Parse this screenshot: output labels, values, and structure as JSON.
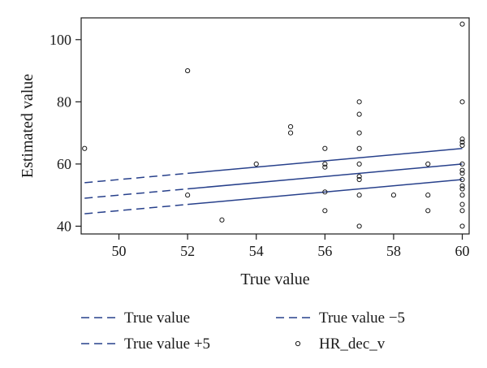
{
  "chart_data": {
    "type": "scatter",
    "title": "",
    "xlabel": "True value",
    "ylabel": "Estimated value",
    "xlim": [
      48.9,
      60.2
    ],
    "ylim": [
      37.5,
      107
    ],
    "x_ticks": [
      50,
      52,
      54,
      56,
      58,
      60
    ],
    "y_ticks": [
      40,
      60,
      80,
      100
    ],
    "grid": false,
    "legend_position": "bottom",
    "colors": {
      "lines": "#27408b",
      "points": "#1a1a1a",
      "axes": "#1a1a1a"
    },
    "lines": [
      {
        "name": "True value",
        "intercept": 0,
        "slope": 1,
        "x_range": [
          49,
          60
        ],
        "solid_from": 52
      },
      {
        "name": "True value +5",
        "intercept": 5,
        "slope": 1,
        "x_range": [
          49,
          60
        ],
        "solid_from": 52
      },
      {
        "name": "True value −5",
        "intercept": -5,
        "slope": 1,
        "x_range": [
          49,
          60
        ],
        "solid_from": 52
      }
    ],
    "series": [
      {
        "name": "HR_dec_v",
        "marker": "circle",
        "points": [
          [
            49,
            65
          ],
          [
            52,
            90
          ],
          [
            52,
            50
          ],
          [
            53,
            42
          ],
          [
            54,
            60
          ],
          [
            55,
            72
          ],
          [
            55,
            70
          ],
          [
            56,
            65
          ],
          [
            56,
            60
          ],
          [
            56,
            59
          ],
          [
            56,
            51
          ],
          [
            56,
            45
          ],
          [
            57,
            80
          ],
          [
            57,
            76
          ],
          [
            57,
            70
          ],
          [
            57,
            65
          ],
          [
            57,
            60
          ],
          [
            57,
            56
          ],
          [
            57,
            55
          ],
          [
            57,
            50
          ],
          [
            57,
            40
          ],
          [
            58,
            50
          ],
          [
            59,
            60
          ],
          [
            59,
            50
          ],
          [
            59,
            45
          ],
          [
            60,
            105
          ],
          [
            60,
            80
          ],
          [
            60,
            68
          ],
          [
            60,
            67
          ],
          [
            60,
            66
          ],
          [
            60,
            60
          ],
          [
            60,
            58
          ],
          [
            60,
            57
          ],
          [
            60,
            55
          ],
          [
            60,
            53
          ],
          [
            60,
            52
          ],
          [
            60,
            50
          ],
          [
            60,
            47
          ],
          [
            60,
            45
          ],
          [
            60,
            40
          ]
        ]
      }
    ],
    "legend": [
      {
        "label": "True value",
        "symbol": "dashed-line"
      },
      {
        "label": "True value −5",
        "symbol": "dashed-line"
      },
      {
        "label": "True value +5",
        "symbol": "dashed-line"
      },
      {
        "label": "HR_dec_v",
        "symbol": "circle"
      }
    ]
  }
}
